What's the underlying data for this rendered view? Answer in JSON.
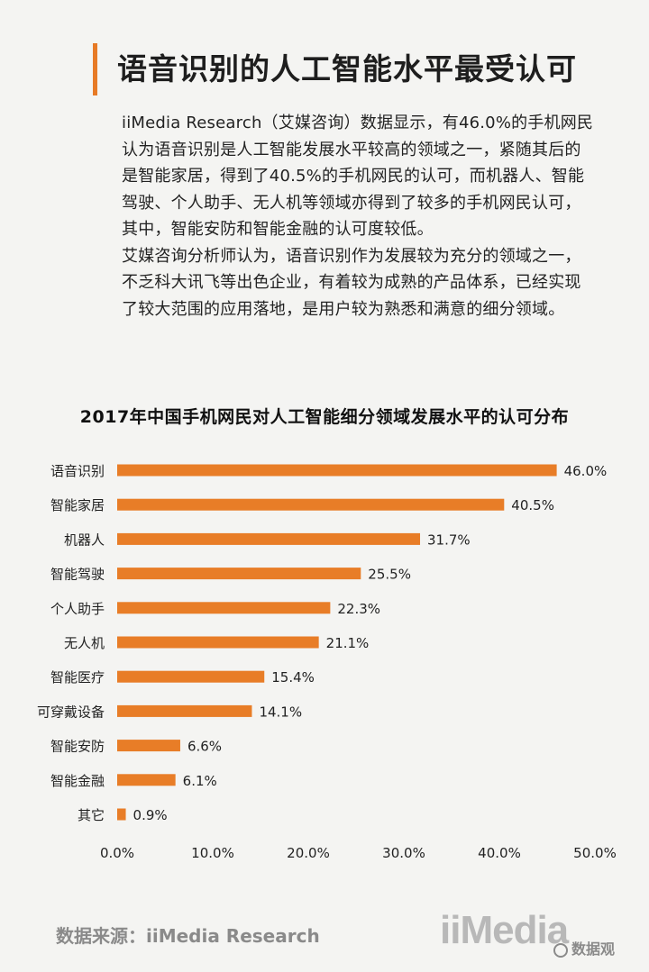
{
  "header": {
    "title": "语音识别的人工智能水平最受认可"
  },
  "intro": {
    "lines": [
      "iiMedia Research（艾媒咨询）数据显示，有46.0%的手机网民",
      "认为语音识别是人工智能发展水平较高的领域之一，紧随其后的",
      "是智能家居，得到了40.5%的手机网民的认可，而机器人、智能",
      "驾驶、个人助手、无人机等领域亦得到了较多的手机网民认可，",
      "其中，智能安防和智能金融的认可度较低。",
      "艾媒咨询分析师认为，语音识别作为发展较为充分的领域之一，",
      "不乏科大讯飞等出色企业，有着较为成熟的产品体系，已经实现",
      "了较大范围的应用落地，是用户较为熟悉和满意的细分领域。"
    ]
  },
  "chart_data": {
    "type": "bar",
    "orientation": "horizontal",
    "title": "2017年中国手机网民对人工智能细分领域发展水平的认可分布",
    "categories": [
      "语音识别",
      "智能家居",
      "机器人",
      "智能驾驶",
      "个人助手",
      "无人机",
      "智能医疗",
      "可穿戴设备",
      "智能安防",
      "智能金融",
      "其它"
    ],
    "values": [
      46.0,
      40.5,
      31.7,
      25.5,
      22.3,
      21.1,
      15.4,
      14.1,
      6.6,
      6.1,
      0.9
    ],
    "value_labels": [
      "46.0%",
      "40.5%",
      "31.7%",
      "25.5%",
      "22.3%",
      "21.1%",
      "15.4%",
      "14.1%",
      "6.6%",
      "6.1%",
      "0.9%"
    ],
    "xlim": [
      0,
      50
    ],
    "x_ticks": [
      0,
      10,
      20,
      30,
      40,
      50
    ],
    "x_tick_labels": [
      "0.0%",
      "10.0%",
      "20.0%",
      "30.0%",
      "40.0%",
      "50.0%"
    ],
    "xlabel": "",
    "ylabel": "",
    "grid": false,
    "bar_color": "#e87d27"
  },
  "footer": {
    "source": "数据来源：iiMedia Research",
    "brand_logo": "iiMedia",
    "wechat_watermark": "数据观"
  }
}
